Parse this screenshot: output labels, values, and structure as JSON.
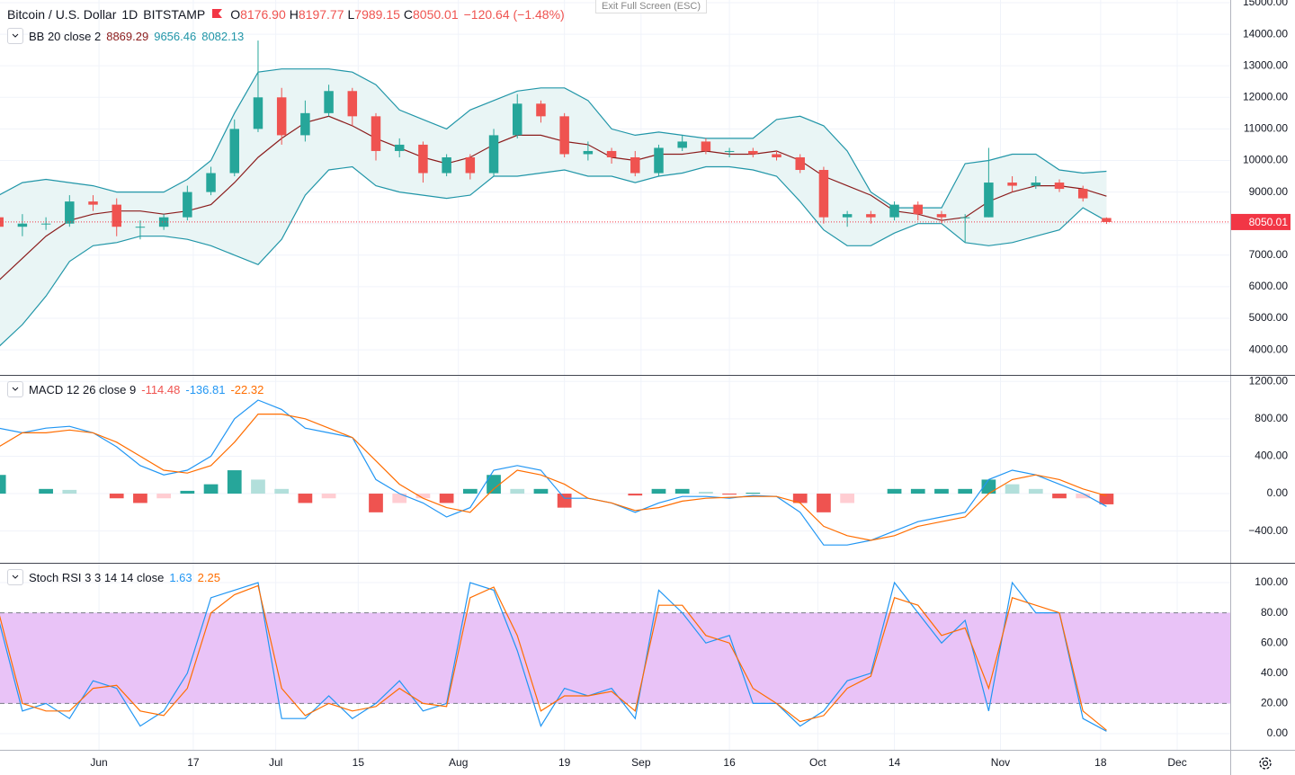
{
  "overlay_text": "Exit Full Screen (ESC)",
  "chart_data": [
    {
      "type": "candlestick",
      "title": "Bitcoin / U.S. Dollar",
      "interval": "1D",
      "exchange": "BITSTAMP",
      "ohlc_labels": [
        "O",
        "H",
        "L",
        "C"
      ],
      "ohlc_value_labels": [
        "8176.90",
        "8197.77",
        "7989.15",
        "8050.01"
      ],
      "change_label": "−120.64 (−1.48%)",
      "indicator": "BB 20 close 2",
      "x": [
        -17,
        -13,
        -9,
        -5,
        -1,
        3,
        7,
        11,
        15,
        19,
        23,
        27,
        31,
        35,
        39,
        43,
        47,
        51,
        55,
        59,
        63,
        67,
        71,
        75,
        79,
        83,
        87,
        91,
        95,
        99,
        103,
        107,
        111,
        115,
        119,
        123,
        127,
        131,
        135,
        139,
        143,
        147,
        151,
        155,
        159,
        163,
        167,
        171
      ],
      "open": [
        8200,
        7900,
        8000,
        8000,
        8700,
        8600,
        7900,
        7900,
        8200,
        9000,
        9600,
        11000,
        12000,
        10800,
        11500,
        12200,
        11400,
        10300,
        10500,
        9600,
        10100,
        9600,
        10800,
        11800,
        11400,
        10200,
        10300,
        10100,
        9600,
        10400,
        10600,
        10300,
        10300,
        10200,
        10100,
        9700,
        8200,
        8300,
        8200,
        8600,
        8300,
        8200,
        8200,
        9300,
        9200,
        9300,
        9100,
        8176.9
      ],
      "high": [
        8400,
        8300,
        8200,
        8900,
        8900,
        8800,
        8100,
        8300,
        9200,
        9800,
        11300,
        13800,
        12300,
        11900,
        12400,
        12300,
        11500,
        10700,
        10600,
        10200,
        10200,
        11000,
        12100,
        11900,
        11500,
        10600,
        10400,
        10300,
        10500,
        10800,
        10700,
        10400,
        10400,
        10300,
        10200,
        9800,
        8400,
        8400,
        8700,
        8700,
        8400,
        8300,
        10400,
        9500,
        9500,
        9400,
        9200,
        8197.77
      ],
      "low": [
        7700,
        7600,
        7800,
        7900,
        8400,
        7600,
        7500,
        7800,
        8100,
        8900,
        9500,
        10900,
        10500,
        10600,
        11400,
        11100,
        10000,
        10100,
        9300,
        9500,
        9400,
        9500,
        10700,
        11200,
        10100,
        10000,
        9900,
        9500,
        9500,
        10300,
        10200,
        10100,
        10100,
        10000,
        9600,
        8000,
        7900,
        8000,
        8100,
        8100,
        8000,
        7400,
        8200,
        9000,
        9100,
        9000,
        8700,
        7989.15
      ],
      "close": [
        7900,
        8000,
        8000,
        8700,
        8600,
        7900,
        7900,
        8200,
        9000,
        9600,
        11000,
        12000,
        10800,
        11500,
        12200,
        11400,
        10300,
        10500,
        9600,
        10100,
        9600,
        10800,
        11800,
        11400,
        10200,
        10300,
        10100,
        9600,
        10400,
        10600,
        10300,
        10300,
        10200,
        10100,
        9700,
        8200,
        8300,
        8200,
        8600,
        8300,
        8200,
        8200,
        9300,
        9200,
        9300,
        9100,
        8800,
        8050.01
      ],
      "up_color": "#26a69a",
      "down_color": "#ef5350",
      "band_fill": "#e9f5f5",
      "last_price_color": "#f23645",
      "series": [
        {
          "color": "#8b1c1c",
          "values": [
            6200,
            6900,
            7600,
            8100,
            8300,
            8400,
            8400,
            8300,
            8400,
            8600,
            9300,
            10100,
            10700,
            11200,
            11400,
            11100,
            10700,
            10400,
            10100,
            9900,
            10100,
            10500,
            10800,
            10800,
            10600,
            10500,
            10100,
            10000,
            10200,
            10200,
            10300,
            10200,
            10200,
            10300,
            10000,
            9500,
            9200,
            8900,
            8400,
            8300,
            8100,
            8200,
            8700,
            9000,
            9200,
            9200,
            9100,
            8869.29
          ]
        },
        {
          "color": "#2196a8",
          "values": [
            8900,
            9300,
            9400,
            9300,
            9200,
            9000,
            9000,
            9000,
            9400,
            10000,
            11500,
            12800,
            12900,
            12900,
            12900,
            12800,
            12400,
            11600,
            11300,
            11000,
            11600,
            11900,
            12200,
            12300,
            12300,
            11900,
            11000,
            10800,
            10900,
            10800,
            10700,
            10700,
            10700,
            11300,
            11400,
            11100,
            10300,
            9000,
            8500,
            8500,
            8500,
            9900,
            10000,
            10200,
            10200,
            9700,
            9600,
            9656.46
          ]
        },
        {
          "color": "#2196a8",
          "values": [
            4100,
            4800,
            5700,
            6800,
            7300,
            7400,
            7600,
            7600,
            7500,
            7300,
            7000,
            6700,
            7500,
            8900,
            9700,
            9800,
            9200,
            9000,
            8900,
            8800,
            8900,
            9500,
            9500,
            9600,
            9700,
            9500,
            9500,
            9300,
            9500,
            9600,
            9800,
            9800,
            9700,
            9500,
            8700,
            7800,
            7300,
            7300,
            7700,
            8000,
            8000,
            7400,
            7300,
            7400,
            7600,
            7800,
            8500,
            8082.13
          ]
        }
      ],
      "xlim": [
        -16.8,
        192
      ],
      "ylim": [
        3205,
        15085
      ],
      "yticks": [
        {
          "value": 15000,
          "label": "15000.00"
        },
        {
          "value": 14000,
          "label": "14000.00"
        },
        {
          "value": 13000,
          "label": "13000.00"
        },
        {
          "value": 12000,
          "label": "12000.00"
        },
        {
          "value": 11000,
          "label": "11000.00"
        },
        {
          "value": 10000,
          "label": "10000.00"
        },
        {
          "value": 9000,
          "label": "9000.00"
        },
        {
          "value": 8000,
          "label": "8000.00"
        },
        {
          "value": 7000,
          "label": "7000.00"
        },
        {
          "value": 6000,
          "label": "6000.00"
        },
        {
          "value": 5000,
          "label": "5000.00"
        },
        {
          "value": 4000,
          "label": "4000.00"
        }
      ],
      "grid": true
    },
    {
      "type": "macd",
      "indicator": "MACD 12 26 close 9",
      "x": [
        -17,
        -13,
        -9,
        -5,
        -1,
        3,
        7,
        11,
        15,
        19,
        23,
        27,
        31,
        35,
        39,
        43,
        47,
        51,
        55,
        59,
        63,
        67,
        71,
        75,
        79,
        83,
        87,
        91,
        95,
        99,
        103,
        107,
        111,
        115,
        119,
        123,
        127,
        131,
        135,
        139,
        143,
        147,
        151,
        155,
        159,
        163,
        167,
        171
      ],
      "histogram": {
        "colors": [
          "#26a69a",
          "#b2dfdb",
          "#ffcdd2",
          "#ef5350"
        ],
        "values": [
          200,
          0,
          50,
          40,
          0,
          -50,
          -100,
          -50,
          30,
          100,
          250,
          150,
          50,
          -100,
          -50,
          0,
          -200,
          -100,
          -50,
          -100,
          50,
          200,
          50,
          50,
          -150,
          0,
          0,
          -20,
          50,
          50,
          20,
          -10,
          10,
          0,
          -100,
          -200,
          -100,
          0,
          50,
          50,
          50,
          50,
          150,
          100,
          50,
          -50,
          -50,
          -114.48
        ]
      },
      "series": [
        {
          "color": "#2196f3",
          "values": [
            700,
            650,
            700,
            720,
            650,
            500,
            300,
            200,
            250,
            400,
            800,
            1000,
            900,
            700,
            650,
            600,
            150,
            0,
            -100,
            -250,
            -150,
            250,
            300,
            250,
            -50,
            -50,
            -100,
            -200,
            -100,
            -30,
            -30,
            -50,
            -20,
            -30,
            -200,
            -550,
            -550,
            -500,
            -400,
            -300,
            -250,
            -200,
            150,
            250,
            200,
            100,
            0,
            -136.81
          ]
        },
        {
          "color": "#ff6d00",
          "values": [
            500,
            650,
            650,
            680,
            650,
            550,
            400,
            250,
            220,
            300,
            550,
            850,
            850,
            800,
            700,
            600,
            350,
            100,
            -50,
            -150,
            -200,
            50,
            250,
            200,
            100,
            -50,
            -100,
            -180,
            -150,
            -80,
            -50,
            -40,
            -30,
            -30,
            -100,
            -350,
            -450,
            -500,
            -450,
            -350,
            -300,
            -250,
            0,
            150,
            200,
            150,
            50,
            -22.32
          ]
        }
      ],
      "xlim": [
        -16.8,
        192
      ],
      "ylim": [
        -740,
        1260
      ],
      "yticks": [
        {
          "value": 1200,
          "label": "1200.00"
        },
        {
          "value": 800,
          "label": "800.00"
        },
        {
          "value": 400,
          "label": "400.00"
        },
        {
          "value": 0,
          "label": "0.00"
        },
        {
          "value": -400,
          "label": "−400.00"
        }
      ],
      "grid": true
    },
    {
      "type": "stoch_rsi",
      "indicator": "Stoch RSI 3 3 14 14 close",
      "x": [
        -17,
        -13,
        -9,
        -5,
        -1,
        3,
        7,
        11,
        15,
        19,
        23,
        27,
        31,
        35,
        39,
        43,
        47,
        51,
        55,
        59,
        63,
        67,
        71,
        75,
        79,
        83,
        87,
        91,
        95,
        99,
        103,
        107,
        111,
        115,
        119,
        123,
        127,
        131,
        135,
        139,
        143,
        147,
        151,
        155,
        159,
        163,
        167,
        171
      ],
      "series": [
        {
          "color": "#2196f3",
          "values": [
            75,
            15,
            20,
            10,
            35,
            30,
            5,
            15,
            40,
            90,
            95,
            100,
            10,
            10,
            25,
            10,
            20,
            35,
            15,
            20,
            100,
            95,
            55,
            5,
            30,
            25,
            30,
            10,
            95,
            80,
            60,
            65,
            20,
            20,
            5,
            15,
            35,
            40,
            100,
            80,
            60,
            75,
            15,
            100,
            80,
            80,
            10,
            1.63
          ]
        },
        {
          "color": "#ff6d00",
          "values": [
            80,
            20,
            15,
            15,
            30,
            32,
            15,
            12,
            30,
            80,
            92,
            98,
            30,
            12,
            20,
            15,
            18,
            30,
            20,
            18,
            90,
            97,
            65,
            15,
            25,
            25,
            28,
            15,
            85,
            85,
            65,
            60,
            30,
            20,
            8,
            12,
            30,
            38,
            90,
            85,
            65,
            70,
            30,
            90,
            85,
            80,
            15,
            2.25
          ]
        }
      ],
      "bands": [
        20,
        80
      ],
      "band_color": "#e9c3f7",
      "xlim": [
        -16.8,
        192
      ],
      "ylim": [
        -10.7,
        112.5
      ],
      "yticks": [
        {
          "value": 100,
          "label": "100.00"
        },
        {
          "value": 80,
          "label": "80.00"
        },
        {
          "value": 60,
          "label": "60.00"
        },
        {
          "value": 40,
          "label": "40.00"
        },
        {
          "value": 20,
          "label": "20.00"
        },
        {
          "value": 0,
          "label": "0.00"
        }
      ],
      "xticks": [
        {
          "value": 0,
          "label": "Jun"
        },
        {
          "value": 16,
          "label": "17"
        },
        {
          "value": 30,
          "label": "Jul"
        },
        {
          "value": 44,
          "label": "15"
        },
        {
          "value": 61,
          "label": "Aug"
        },
        {
          "value": 79,
          "label": "19"
        },
        {
          "value": 92,
          "label": "Sep"
        },
        {
          "value": 107,
          "label": "16"
        },
        {
          "value": 122,
          "label": "Oct"
        },
        {
          "value": 135,
          "label": "14"
        },
        {
          "value": 153,
          "label": "Nov"
        },
        {
          "value": 170,
          "label": "18"
        },
        {
          "value": 183,
          "label": "Dec"
        }
      ],
      "grid": true
    }
  ]
}
